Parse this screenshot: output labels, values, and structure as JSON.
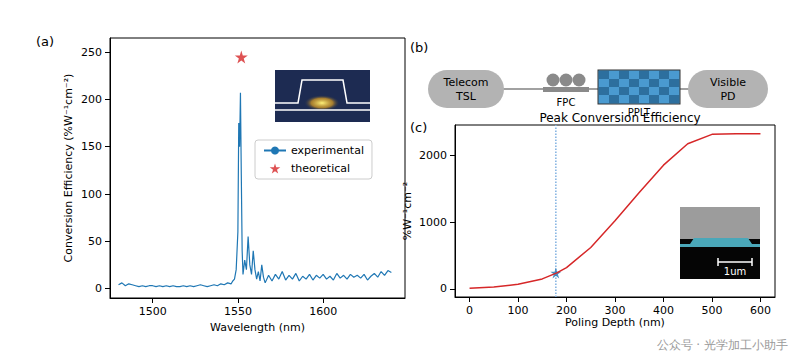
{
  "panel_labels": [
    "(a)",
    "(b)",
    "(c)"
  ],
  "chart_data": [
    {
      "type": "line",
      "x_label": "Wavelength (nm)",
      "y_label": "Conversion Efficiency (%W⁻¹cm⁻²)",
      "xlim": [
        1475,
        1648
      ],
      "xticks": [
        1500,
        1550,
        1600
      ],
      "ylim": [
        -10,
        265
      ],
      "yticks": [
        0,
        50,
        100,
        150,
        200,
        250
      ],
      "grid": false,
      "legend": "center right",
      "series": [
        {
          "name": "experimental",
          "type": "line",
          "color": "#1f77b4",
          "line_style": "solid",
          "x": [
            1480,
            1482,
            1484,
            1486,
            1488,
            1490,
            1492,
            1494,
            1496,
            1498,
            1500,
            1502,
            1504,
            1506,
            1508,
            1510,
            1512,
            1514,
            1516,
            1518,
            1520,
            1522,
            1524,
            1526,
            1528,
            1530,
            1532,
            1534,
            1536,
            1538,
            1540,
            1542,
            1544,
            1546,
            1547,
            1548,
            1549,
            1550,
            1550.5,
            1551,
            1551.5,
            1552,
            1552.5,
            1553,
            1554,
            1555,
            1556,
            1557,
            1558,
            1559,
            1560,
            1561,
            1562,
            1563,
            1564,
            1565,
            1566,
            1568,
            1570,
            1572,
            1574,
            1576,
            1578,
            1580,
            1582,
            1584,
            1586,
            1588,
            1590,
            1592,
            1594,
            1596,
            1598,
            1600,
            1602,
            1604,
            1606,
            1608,
            1610,
            1612,
            1614,
            1616,
            1618,
            1620,
            1622,
            1624,
            1626,
            1628,
            1630,
            1632,
            1634,
            1636,
            1638,
            1640
          ],
          "values": [
            4,
            6,
            3,
            5,
            4,
            3,
            2,
            3,
            2,
            3,
            3,
            2,
            3,
            2,
            3,
            2,
            3,
            2,
            2,
            3,
            2,
            3,
            2,
            3,
            4,
            3,
            2,
            3,
            4,
            3,
            5,
            4,
            6,
            5,
            8,
            10,
            20,
            60,
            175,
            150,
            207,
            120,
            40,
            15,
            30,
            20,
            55,
            25,
            15,
            40,
            20,
            10,
            18,
            8,
            25,
            12,
            6,
            14,
            8,
            15,
            10,
            18,
            9,
            14,
            10,
            16,
            8,
            13,
            10,
            15,
            9,
            14,
            11,
            15,
            10,
            13,
            9,
            16,
            11,
            14,
            10,
            15,
            12,
            14,
            11,
            15,
            9,
            13,
            16,
            12,
            18,
            14,
            19,
            17
          ]
        },
        {
          "name": "theoretical",
          "type": "scatter",
          "color": "#d62728",
          "marker": "star",
          "x": [
            1552
          ],
          "values": [
            245
          ]
        }
      ]
    },
    {
      "type": "line",
      "title": "Peak Conversion Efficiency",
      "x_label": "Poling Depth (nm)",
      "y_label": "%W⁻¹cm⁻²",
      "xlim": [
        -30,
        630
      ],
      "xticks": [
        0,
        100,
        200,
        300,
        400,
        500,
        600
      ],
      "ylim": [
        -120,
        2450
      ],
      "yticks": [
        0,
        1000,
        2000
      ],
      "grid": false,
      "series": [
        {
          "type": "line",
          "color": "#d62728",
          "line_style": "solid",
          "x": [
            0,
            50,
            100,
            150,
            180,
            200,
            250,
            300,
            350,
            400,
            450,
            500,
            550,
            600
          ],
          "values": [
            10,
            30,
            70,
            150,
            240,
            320,
            620,
            1020,
            1440,
            1850,
            2170,
            2310,
            2320,
            2320
          ]
        },
        {
          "type": "scatter",
          "color": "#1f77b4",
          "marker": "star",
          "x": [
            178
          ],
          "values": [
            240
          ]
        },
        {
          "type": "vline",
          "color": "#7fb0e0",
          "line_style": "dotted",
          "x": [
            178
          ]
        }
      ]
    }
  ],
  "diagram_b": {
    "nodes": [
      {
        "label": [
          "Telecom",
          "TSL"
        ]
      },
      {
        "label": [
          "FPC"
        ]
      },
      {
        "label": [
          "PPLT"
        ]
      },
      {
        "label": [
          "Visible",
          "PD"
        ]
      }
    ]
  },
  "inset_c": {
    "scale_bar": "1um"
  },
  "watermark": "公众号 · 光学加工小助手"
}
